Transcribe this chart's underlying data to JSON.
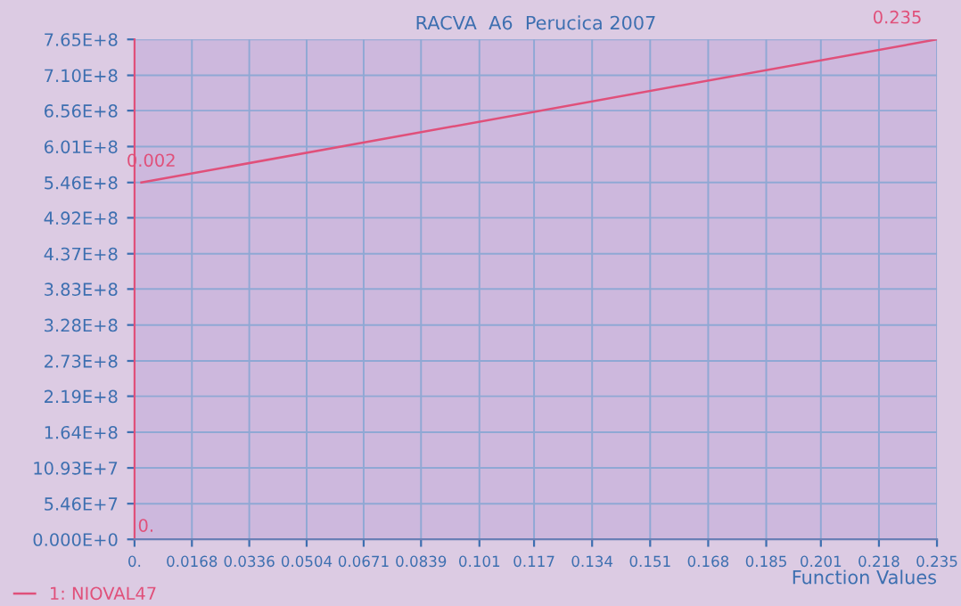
{
  "chart_data": {
    "type": "line",
    "title": "RACVA  A6  Perucica 2007",
    "xlabel": "Function Values",
    "x": [
      0.002,
      0.235
    ],
    "series": [
      {
        "name": "1: NIOVAL47",
        "color": "#e0507a",
        "values": [
          546000000,
          765000000
        ]
      }
    ],
    "annotations": [
      "0.",
      {
        "text": "0.002",
        "x": 0.002,
        "y": 546000000
      },
      {
        "text": "0.235",
        "x": 0.235,
        "y": 765000000
      }
    ],
    "xlim": [
      0,
      0.235
    ],
    "xticks": [
      {
        "value": 0,
        "label": "0."
      },
      0.0168,
      0.0336,
      0.0504,
      0.0671,
      0.0839,
      0.101,
      0.117,
      0.134,
      0.151,
      0.168,
      0.185,
      0.201,
      0.218,
      0.235
    ],
    "ylim": [
      0,
      765000000
    ],
    "yticks": [
      {
        "value": 0,
        "label": "0.000E+0"
      },
      {
        "value": 54600000,
        "label": "5.46E+7"
      },
      {
        "value": 109300000,
        "label": "10.93E+7"
      },
      {
        "value": 164000000,
        "label": "1.64E+8"
      },
      {
        "value": 219000000,
        "label": "2.19E+8"
      },
      {
        "value": 273000000,
        "label": "2.73E+8"
      },
      {
        "value": 328000000,
        "label": "3.28E+8"
      },
      {
        "value": 383000000,
        "label": "3.83E+8"
      },
      {
        "value": 437000000,
        "label": "4.37E+8"
      },
      {
        "value": 492000000,
        "label": "4.92E+8"
      },
      {
        "value": 546000000,
        "label": "5.46E+8"
      },
      {
        "value": 601000000,
        "label": "6.01E+8"
      },
      {
        "value": 656000000,
        "label": "6.56E+8"
      },
      {
        "value": 710000000,
        "label": "7.10E+8"
      },
      {
        "value": 765000000,
        "label": "7.65E+8"
      }
    ],
    "grid": true,
    "legend": "bottom left",
    "marker": "none",
    "line_style": "solid"
  }
}
